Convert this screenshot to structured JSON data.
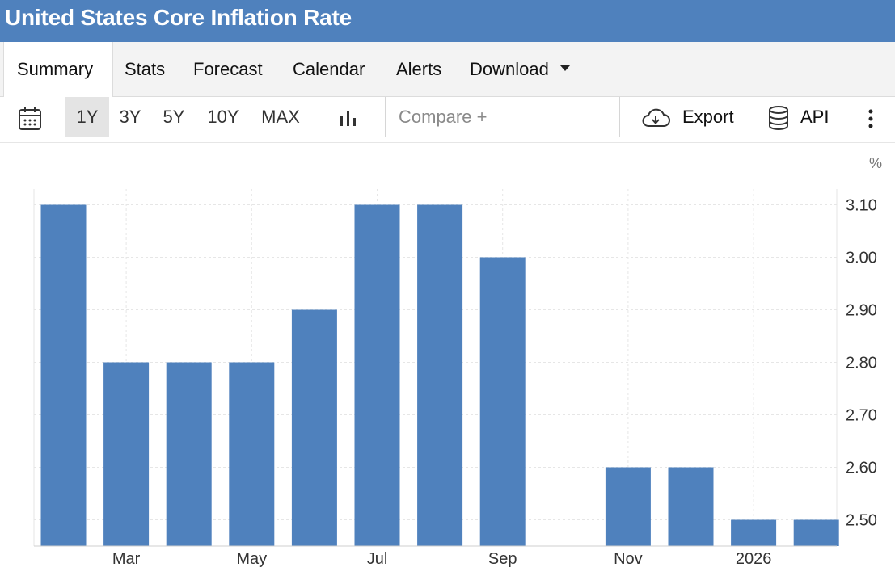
{
  "header": {
    "title": "United States Core Inflation Rate"
  },
  "tabs": [
    {
      "label": "Summary"
    },
    {
      "label": "Stats"
    },
    {
      "label": "Forecast"
    },
    {
      "label": "Calendar"
    },
    {
      "label": "Alerts"
    },
    {
      "label": "Download"
    }
  ],
  "toolbar": {
    "ranges": [
      "1Y",
      "3Y",
      "5Y",
      "10Y",
      "MAX"
    ],
    "active_range": "1Y",
    "compare_placeholder": "Compare +",
    "export_label": "Export",
    "api_label": "API"
  },
  "colors": {
    "header": "#4f81bd",
    "bar": "#4f81bd",
    "grid": "#e6e6e6"
  },
  "chart_data": {
    "type": "bar",
    "unit": "%",
    "x": [
      "2025-02",
      "2025-03",
      "2025-04",
      "2025-05",
      "2025-06",
      "2025-07",
      "2025-08",
      "2025-09",
      "2025-10",
      "2025-11",
      "2025-12",
      "2026-01",
      "2026-02"
    ],
    "values": [
      3.1,
      2.8,
      2.8,
      2.8,
      2.9,
      3.1,
      3.1,
      3.0,
      null,
      2.6,
      2.6,
      2.5,
      2.5
    ],
    "x_tick_labels": [
      {
        "at": "2025-03",
        "label": "Mar"
      },
      {
        "at": "2025-05",
        "label": "May"
      },
      {
        "at": "2025-07",
        "label": "Jul"
      },
      {
        "at": "2025-09",
        "label": "Sep"
      },
      {
        "at": "2025-11",
        "label": "Nov"
      },
      {
        "at": "2026-01",
        "label": "2026"
      }
    ],
    "y_ticks": [
      "3.10",
      "3.00",
      "2.90",
      "2.80",
      "2.70",
      "2.60",
      "2.50"
    ],
    "ylim": [
      2.45,
      3.13
    ],
    "y_axis_position": "right",
    "grid": true
  }
}
